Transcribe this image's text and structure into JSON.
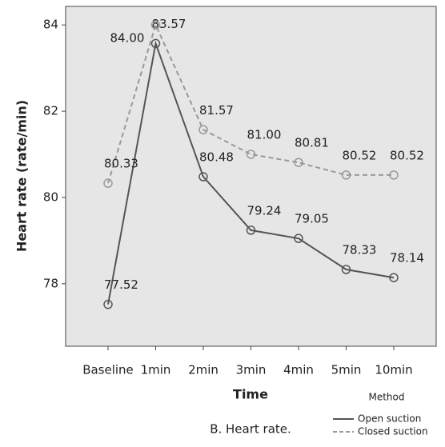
{
  "chart_data": {
    "type": "line",
    "caption": "B. Heart rate.",
    "x_label": "Time",
    "y_label": "Heart rate (rate/min)",
    "legend_title": "Method",
    "categories": [
      "Baseline",
      "1min",
      "2min",
      "3min",
      "4min",
      "5min",
      "10min"
    ],
    "series": [
      {
        "name": "Open suction",
        "color": "#555555",
        "dash": false,
        "values": [
          77.52,
          83.57,
          80.48,
          79.24,
          79.05,
          78.33,
          78.14
        ],
        "value_labels": [
          "77.52",
          "83.57",
          "80.48",
          "79.24",
          "79.05",
          "78.33",
          "78.14"
        ]
      },
      {
        "name": "Closed suction",
        "color": "#999999",
        "dash": true,
        "values": [
          80.33,
          84.0,
          81.57,
          81.0,
          80.81,
          80.52,
          80.52
        ],
        "value_labels": [
          "80.33",
          "84.00",
          "81.57",
          "81.00",
          "80.81",
          "80.52",
          "80.52"
        ]
      }
    ],
    "ylim": [
      76.55,
      84.43
    ],
    "yticks": [
      78,
      80,
      82,
      84
    ]
  }
}
